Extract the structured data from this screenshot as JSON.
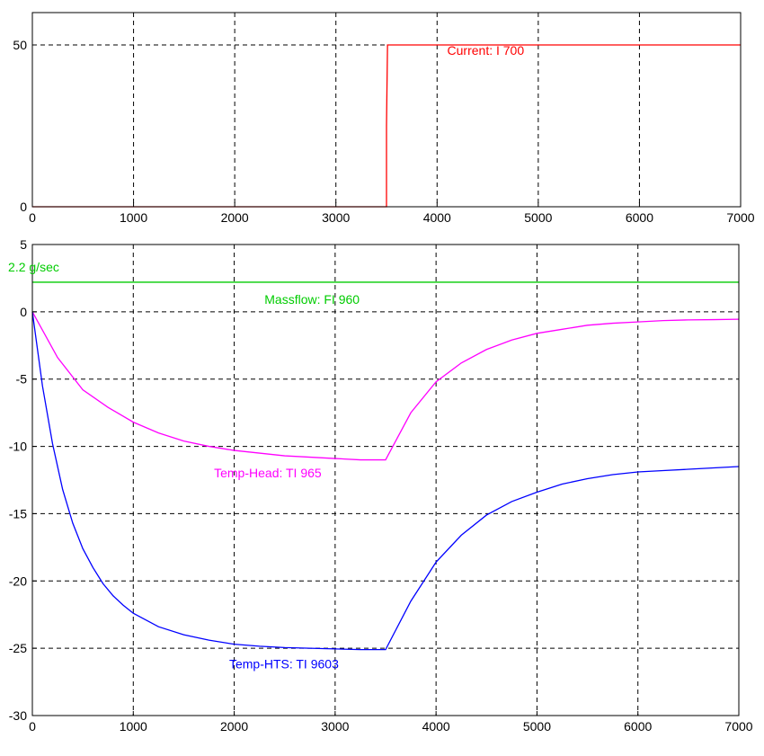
{
  "chart_data": [
    {
      "type": "line",
      "title": "",
      "xlabel": "",
      "ylabel": "",
      "xlim": [
        0,
        7000
      ],
      "ylim": [
        0,
        60
      ],
      "xticks": [
        0,
        1000,
        2000,
        3000,
        4000,
        5000,
        6000,
        7000
      ],
      "yticks": [
        0,
        50
      ],
      "grid": true,
      "series": [
        {
          "name": "Current: I 700",
          "color": "#ff0000",
          "x": [
            0,
            3500,
            3500,
            3510,
            7000
          ],
          "y": [
            0,
            0,
            25,
            50,
            50
          ]
        }
      ],
      "annotations": [
        {
          "text": "Current: I 700",
          "x": 4100,
          "y": 47,
          "color": "#ff0000"
        }
      ]
    },
    {
      "type": "line",
      "title": "",
      "xlabel": "",
      "ylabel": "",
      "xlim": [
        0,
        7000
      ],
      "ylim": [
        -30,
        5
      ],
      "xticks": [
        0,
        1000,
        2000,
        3000,
        4000,
        5000,
        6000,
        7000
      ],
      "yticks": [
        5,
        0,
        -5,
        -10,
        -15,
        -20,
        -25,
        -30
      ],
      "grid": true,
      "series": [
        {
          "name": "Massflow: FI 960",
          "color": "#00cc00",
          "x": [
            0,
            7000
          ],
          "y": [
            2.2,
            2.2
          ]
        },
        {
          "name": "Temp-Head: TI 965",
          "color": "#ff00ff",
          "x": [
            0,
            250,
            500,
            750,
            1000,
            1250,
            1500,
            1750,
            2000,
            2250,
            2500,
            2750,
            3000,
            3250,
            3500,
            3750,
            4000,
            4250,
            4500,
            4750,
            5000,
            5250,
            5500,
            5750,
            6000,
            6250,
            6500,
            6750,
            7000
          ],
          "y": [
            0,
            -3.4,
            -5.8,
            -7.1,
            -8.2,
            -9.0,
            -9.6,
            -10.0,
            -10.3,
            -10.5,
            -10.7,
            -10.8,
            -10.9,
            -11.0,
            -11.0,
            -7.5,
            -5.2,
            -3.8,
            -2.8,
            -2.1,
            -1.6,
            -1.3,
            -1.0,
            -0.85,
            -0.75,
            -0.65,
            -0.6,
            -0.58,
            -0.55
          ]
        },
        {
          "name": "Temp-HTS: TI 9603",
          "color": "#0000ff",
          "x": [
            0,
            100,
            200,
            300,
            400,
            500,
            600,
            700,
            800,
            900,
            1000,
            1250,
            1500,
            1750,
            2000,
            2250,
            2500,
            2750,
            3000,
            3250,
            3500,
            3750,
            4000,
            4250,
            4500,
            4750,
            5000,
            5250,
            5500,
            5750,
            6000,
            6250,
            6500,
            6750,
            7000
          ],
          "y": [
            0,
            -5.5,
            -9.8,
            -13.2,
            -15.7,
            -17.6,
            -19.0,
            -20.2,
            -21.1,
            -21.8,
            -22.4,
            -23.4,
            -24.0,
            -24.4,
            -24.7,
            -24.85,
            -24.95,
            -25.0,
            -25.05,
            -25.1,
            -25.1,
            -21.5,
            -18.6,
            -16.6,
            -15.1,
            -14.1,
            -13.4,
            -12.8,
            -12.4,
            -12.1,
            -11.9,
            -11.8,
            -11.7,
            -11.6,
            -11.5
          ]
        }
      ],
      "annotations": [
        {
          "text": "2.2 g/sec",
          "x": -240,
          "y": 3.0,
          "color": "#00cc00"
        },
        {
          "text": "Massflow: FI 960",
          "x": 2300,
          "y": 0.6,
          "color": "#00cc00"
        },
        {
          "text": "Temp-Head: TI 965",
          "x": 1800,
          "y": -12.3,
          "color": "#ff00ff"
        },
        {
          "text": "Temp-HTS: TI 9603",
          "x": 1950,
          "y": -26.5,
          "color": "#0000ff"
        }
      ]
    }
  ]
}
